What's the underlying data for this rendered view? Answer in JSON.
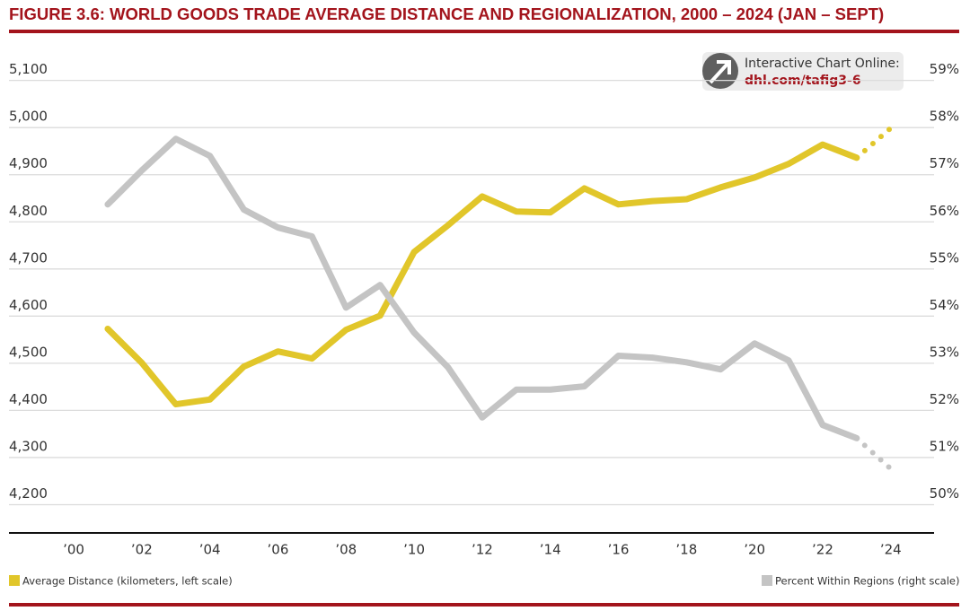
{
  "chart_data": {
    "type": "line",
    "title": "FIGURE 3.6: WORLD GOODS TRADE AVERAGE DISTANCE AND REGIONALIZATION, 2000 – 2024 (JAN – SEPT)",
    "annotation": {
      "text": "Interactive Chart Online:",
      "link": "dhl.com/tafig3-6"
    },
    "x": [
      2001,
      2002,
      2003,
      2004,
      2005,
      2006,
      2007,
      2008,
      2009,
      2010,
      2011,
      2012,
      2013,
      2014,
      2015,
      2016,
      2017,
      2018,
      2019,
      2020,
      2021,
      2022,
      2023,
      2024
    ],
    "projected_from": 2023,
    "series": [
      {
        "name": "Average Distance (kilometers, left scale)",
        "color": "#e1c62a",
        "values": [
          4573,
          4501,
          4413,
          4423,
          4493,
          4525,
          4510,
          4571,
          4601,
          4736,
          4793,
          4854,
          4822,
          4820,
          4871,
          4837,
          4844,
          4848,
          4873,
          4894,
          4923,
          4964,
          4936,
          4999
        ]
      },
      {
        "name": "Percent Within Regions (right scale)",
        "color": "#c4c4c4",
        "axis": "y2",
        "values": [
          56.37,
          57.09,
          57.76,
          57.4,
          56.26,
          55.88,
          55.69,
          54.18,
          54.66,
          53.65,
          52.91,
          51.85,
          52.44,
          52.44,
          52.51,
          53.16,
          53.12,
          53.02,
          52.87,
          53.42,
          53.06,
          51.69,
          51.41,
          50.76
        ]
      }
    ],
    "xlim": [
      1998.1,
      2025.8
    ],
    "xticks": [
      {
        "value": 2000,
        "label": "’00"
      },
      {
        "value": 2002,
        "label": "’02"
      },
      {
        "value": 2004,
        "label": "’04"
      },
      {
        "value": 2006,
        "label": "’06"
      },
      {
        "value": 2008,
        "label": "’08"
      },
      {
        "value": 2010,
        "label": "’10"
      },
      {
        "value": 2012,
        "label": "’12"
      },
      {
        "value": 2014,
        "label": "’14"
      },
      {
        "value": 2016,
        "label": "’16"
      },
      {
        "value": 2018,
        "label": "’18"
      },
      {
        "value": 2020,
        "label": "’20"
      },
      {
        "value": 2022,
        "label": "’22"
      },
      {
        "value": 2024,
        "label": "’24"
      }
    ],
    "ylim": [
      4140,
      5185
    ],
    "yticks": [
      {
        "value": 4200,
        "label": "4,200"
      },
      {
        "value": 4300,
        "label": "4,300"
      },
      {
        "value": 4400,
        "label": "4,400"
      },
      {
        "value": 4500,
        "label": "4,500"
      },
      {
        "value": 4600,
        "label": "4,600"
      },
      {
        "value": 4700,
        "label": "4,700"
      },
      {
        "value": 4800,
        "label": "4,800"
      },
      {
        "value": 4900,
        "label": "4,900"
      },
      {
        "value": 5000,
        "label": "5,000"
      },
      {
        "value": 5100,
        "label": "5,100"
      }
    ],
    "y2lim": [
      49.4,
      59.85
    ],
    "y2ticks": [
      {
        "value": 50,
        "label": "50%"
      },
      {
        "value": 51,
        "label": "51%"
      },
      {
        "value": 52,
        "label": "52%"
      },
      {
        "value": 53,
        "label": "53%"
      },
      {
        "value": 54,
        "label": "54%"
      },
      {
        "value": 55,
        "label": "55%"
      },
      {
        "value": 56,
        "label": "56%"
      },
      {
        "value": 57,
        "label": "57%"
      },
      {
        "value": 58,
        "label": "58%"
      },
      {
        "value": 59,
        "label": "59%"
      }
    ],
    "grid": true
  }
}
